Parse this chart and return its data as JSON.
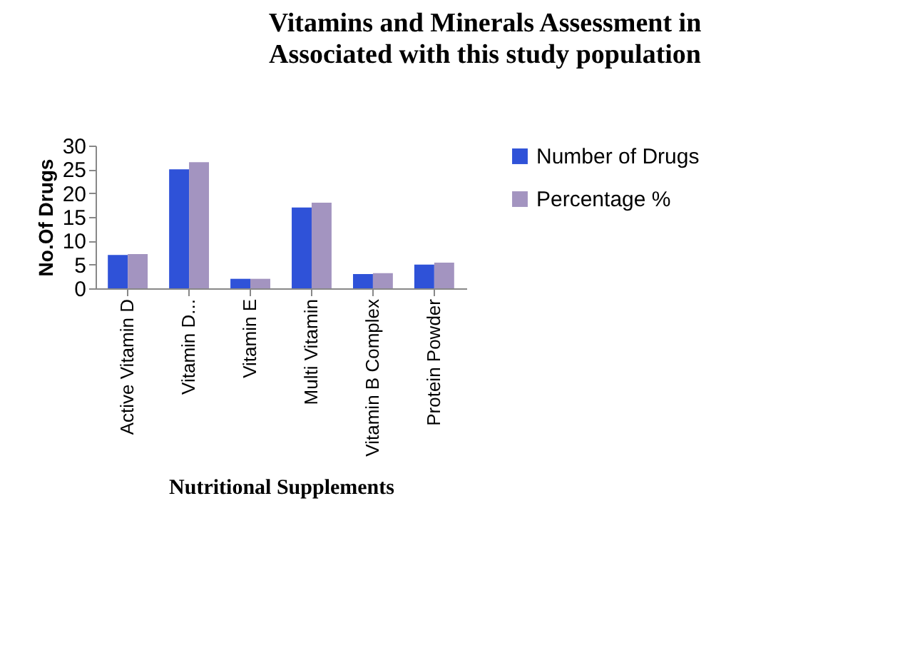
{
  "chart_data": {
    "type": "bar",
    "title": "Vitamins and Minerals Assessment in Associated with this study population",
    "xlabel": "Nutritional Supplements",
    "ylabel": "No.Of Drugs",
    "categories": [
      "Active Vitamin D",
      "Vitamin D...",
      "Vitamin E",
      "Multi Vitamin",
      "Vitamin B Complex",
      "Protein Powder"
    ],
    "series": [
      {
        "name": "Number of Drugs",
        "color": "#2f52d8",
        "values": [
          7,
          25,
          2,
          17,
          3,
          5
        ]
      },
      {
        "name": "Percentage %",
        "color": "#a394c0",
        "values": [
          7.2,
          26.5,
          2,
          18,
          3.2,
          5.4
        ]
      }
    ],
    "ylim": [
      0,
      30
    ],
    "yticks": [
      0,
      5,
      10,
      15,
      20,
      25,
      30
    ],
    "legend": "right"
  }
}
